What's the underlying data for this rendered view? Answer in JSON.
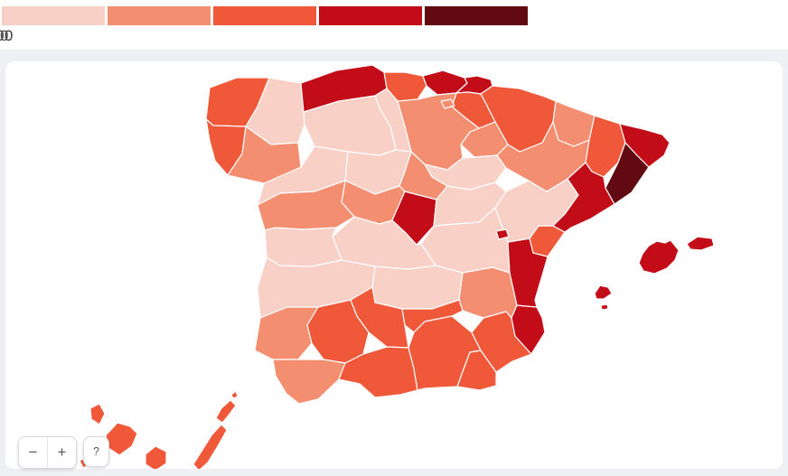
{
  "legend": {
    "thresholds": [
      "50",
      "100",
      "300",
      "700"
    ],
    "buckets": [
      {
        "color": "#f9d0c6"
      },
      {
        "color": "#f48e71"
      },
      {
        "color": "#f0583a"
      },
      {
        "color": "#c20d18"
      },
      {
        "color": "#620a11"
      }
    ]
  },
  "theme": {
    "page_bg": "#ffffff",
    "strip_bg": "#eff0f3",
    "card_bg": "#ffffff",
    "sea": "#ffffff",
    "province_border": "#ffffff",
    "label_color": "#4f4f4f"
  },
  "controls": {
    "zoom_out": "−",
    "zoom_in": "+",
    "help": "?"
  },
  "map": {
    "country": "Spain",
    "provinces": [
      {
        "id": "a-coruna",
        "name": "A Coruña",
        "bucket": 3
      },
      {
        "id": "lugo",
        "name": "Lugo",
        "bucket": 1
      },
      {
        "id": "pontevedra",
        "name": "Pontevedra",
        "bucket": 3
      },
      {
        "id": "ourense",
        "name": "Ourense",
        "bucket": 2
      },
      {
        "id": "asturias",
        "name": "Asturias",
        "bucket": 4
      },
      {
        "id": "cantabria",
        "name": "Cantabria",
        "bucket": 3
      },
      {
        "id": "bizkaia",
        "name": "Bizkaia",
        "bucket": 4
      },
      {
        "id": "gipuzkoa",
        "name": "Gipuzkoa",
        "bucket": 4
      },
      {
        "id": "alava",
        "name": "Álava",
        "bucket": 3
      },
      {
        "id": "navarra",
        "name": "Navarra",
        "bucket": 3
      },
      {
        "id": "la-rioja",
        "name": "La Rioja",
        "bucket": 2
      },
      {
        "id": "burgos",
        "name": "Burgos",
        "bucket": 2
      },
      {
        "id": "palencia",
        "name": "Palencia",
        "bucket": 1
      },
      {
        "id": "leon",
        "name": "León",
        "bucket": 1
      },
      {
        "id": "zamora",
        "name": "Zamora",
        "bucket": 1
      },
      {
        "id": "valladolid",
        "name": "Valladolid",
        "bucket": 1
      },
      {
        "id": "soria",
        "name": "Soria",
        "bucket": 1
      },
      {
        "id": "segovia",
        "name": "Segovia",
        "bucket": 2
      },
      {
        "id": "avila",
        "name": "Ávila",
        "bucket": 2
      },
      {
        "id": "salamanca",
        "name": "Salamanca",
        "bucket": 2
      },
      {
        "id": "madrid",
        "name": "Madrid",
        "bucket": 4
      },
      {
        "id": "guadalajara",
        "name": "Guadalajara",
        "bucket": 1
      },
      {
        "id": "cuenca",
        "name": "Cuenca",
        "bucket": 1
      },
      {
        "id": "toledo",
        "name": "Toledo",
        "bucket": 1
      },
      {
        "id": "caceres",
        "name": "Cáceres",
        "bucket": 1
      },
      {
        "id": "badajoz",
        "name": "Badajoz",
        "bucket": 1
      },
      {
        "id": "ciudad-real",
        "name": "Ciudad Real",
        "bucket": 1
      },
      {
        "id": "albacete",
        "name": "Albacete",
        "bucket": 2
      },
      {
        "id": "huelva",
        "name": "Huelva",
        "bucket": 2
      },
      {
        "id": "sevilla",
        "name": "Sevilla",
        "bucket": 3
      },
      {
        "id": "cordoba",
        "name": "Córdoba",
        "bucket": 3
      },
      {
        "id": "jaen",
        "name": "Jaén",
        "bucket": 3
      },
      {
        "id": "cadiz",
        "name": "Cádiz",
        "bucket": 2
      },
      {
        "id": "malaga",
        "name": "Málaga",
        "bucket": 3
      },
      {
        "id": "granada",
        "name": "Granada",
        "bucket": 3
      },
      {
        "id": "almeria",
        "name": "Almería",
        "bucket": 3
      },
      {
        "id": "murcia",
        "name": "Murcia",
        "bucket": 3
      },
      {
        "id": "alicante",
        "name": "Alicante",
        "bucket": 4
      },
      {
        "id": "valencia",
        "name": "València",
        "bucket": 4
      },
      {
        "id": "castellon",
        "name": "Castellón",
        "bucket": 3
      },
      {
        "id": "teruel",
        "name": "Teruel",
        "bucket": 1
      },
      {
        "id": "zaragoza",
        "name": "Zaragoza",
        "bucket": 2
      },
      {
        "id": "huesca",
        "name": "Huesca",
        "bucket": 2
      },
      {
        "id": "lleida",
        "name": "Lleida",
        "bucket": 3
      },
      {
        "id": "tarragona",
        "name": "Tarragona",
        "bucket": 4
      },
      {
        "id": "barcelona",
        "name": "Barcelona",
        "bucket": 5
      },
      {
        "id": "girona",
        "name": "Girona",
        "bucket": 4
      },
      {
        "id": "mallorca",
        "name": "Mallorca",
        "bucket": 4
      },
      {
        "id": "menorca",
        "name": "Menorca",
        "bucket": 4
      },
      {
        "id": "eivissa",
        "name": "Eivissa",
        "bucket": 4
      },
      {
        "id": "formentera",
        "name": "Formentera",
        "bucket": 4
      },
      {
        "id": "la-palma",
        "name": "La Palma",
        "bucket": 3
      },
      {
        "id": "el-hierro",
        "name": "El Hierro",
        "bucket": 3
      },
      {
        "id": "la-gomera",
        "name": "La Gomera",
        "bucket": 3
      },
      {
        "id": "tenerife",
        "name": "Tenerife",
        "bucket": 3
      },
      {
        "id": "gran-canaria",
        "name": "Gran Canaria",
        "bucket": 3
      },
      {
        "id": "fuerteventura",
        "name": "Fuerteventura",
        "bucket": 3
      },
      {
        "id": "lanzarote",
        "name": "Lanzarote",
        "bucket": 3
      },
      {
        "id": "la-graciosa",
        "name": "La Graciosa",
        "bucket": 3
      },
      {
        "id": "trevino",
        "name": "Treviño (Burgos enclave)",
        "bucket": 2
      },
      {
        "id": "rincon-de-ademuz",
        "name": "Rincón de Ademuz (València exclave)",
        "bucket": 4
      }
    ]
  }
}
